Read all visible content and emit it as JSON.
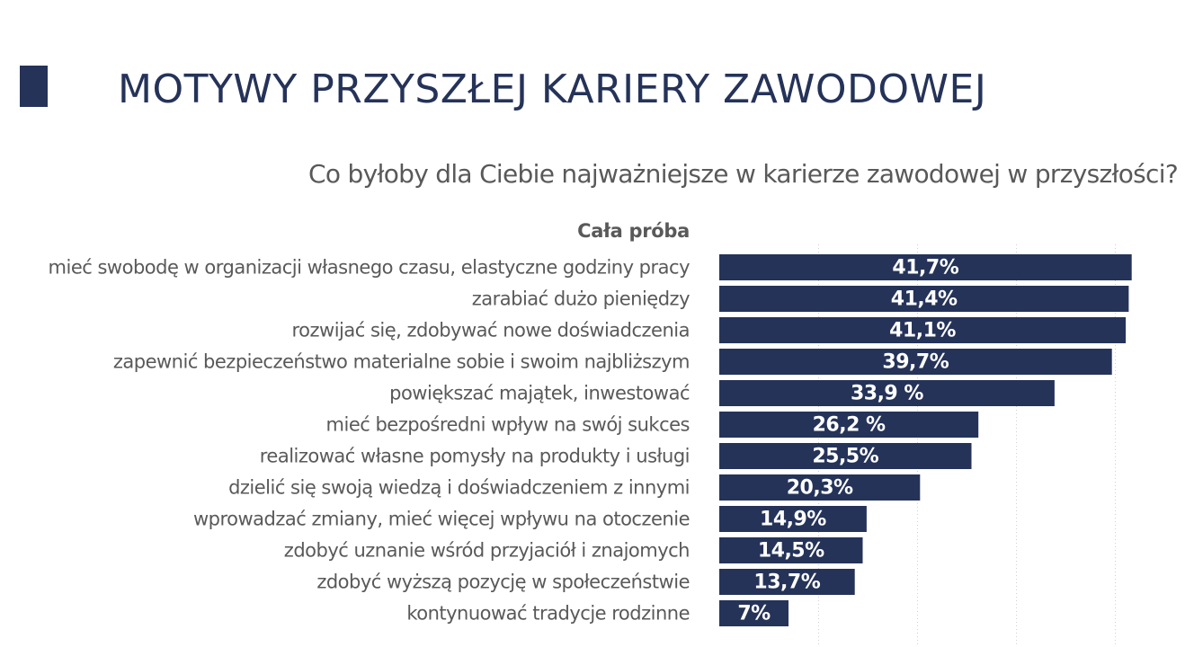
{
  "header": {
    "title": "MOTYWY PRZYSZŁEJ KARIERY ZAWODOWEJ",
    "accent_color": "#253359"
  },
  "chart_data": {
    "type": "bar",
    "orientation": "horizontal",
    "title": "Co byłoby dla Ciebie najważniejsze w karierze zawodowej w przyszłości?",
    "series": [
      {
        "name": "Cała próba",
        "color": "#253359",
        "values": [
          41.7,
          41.4,
          41.1,
          39.7,
          33.9,
          26.2,
          25.5,
          20.3,
          14.9,
          14.5,
          13.7,
          7
        ]
      }
    ],
    "categories": [
      "mieć swobodę w organizacji własnego czasu, elastyczne godziny pracy",
      "zarabiać dużo pieniędzy",
      "rozwijać się, zdobywać nowe doświadczenia",
      "zapewnić bezpieczeństwo materialne sobie i swoim najbliższym",
      "powiększać majątek, inwestować",
      "mieć bezpośredni wpływ na swój sukces",
      "realizować własne pomysły na produkty i usługi",
      "dzielić się swoją wiedzą i doświadczeniem z innymi",
      "wprowadzać zmiany, mieć więcej wpływu na otoczenie",
      "zdobyć uznanie wśród przyjaciół i znajomych",
      "zdobyć wyższą pozycję w społeczeństwie",
      "kontynuować tradycje rodzinne"
    ],
    "data_labels": [
      "41,7%",
      "41,4%",
      "41,1%",
      "39,7%",
      "33,9 %",
      "26,2 %",
      "25,5%",
      "20,3%",
      "14,9%",
      "14,5%",
      "13,7%",
      "7%"
    ],
    "xlim": [
      0,
      45
    ],
    "grid": true,
    "xlabel": "",
    "ylabel": ""
  }
}
